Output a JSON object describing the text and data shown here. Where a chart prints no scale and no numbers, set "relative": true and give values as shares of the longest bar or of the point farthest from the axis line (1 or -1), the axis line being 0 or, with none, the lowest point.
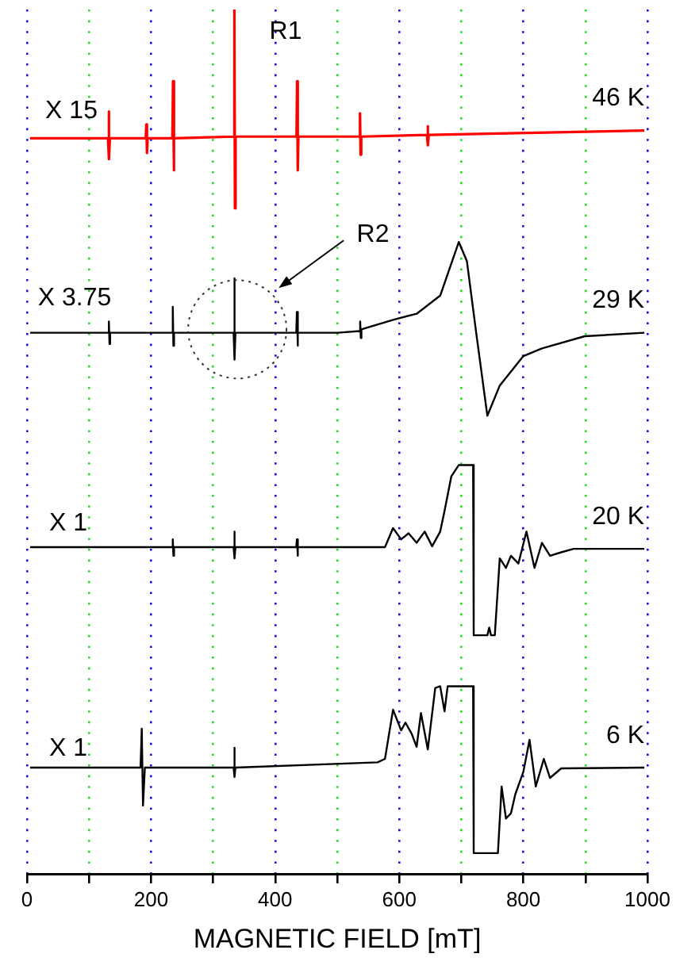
{
  "chart_data": {
    "type": "line",
    "relative": true,
    "xlabel": "MAGNETIC FIELD [mT]",
    "xlim": [
      0,
      1000
    ],
    "xticks": [
      0,
      {
        "value": 100,
        "label": null
      },
      200,
      {
        "value": 300,
        "label": null
      },
      400,
      {
        "value": 500,
        "label": null
      },
      600,
      {
        "value": 700,
        "label": null
      },
      800,
      {
        "value": 900,
        "label": null
      },
      1000
    ],
    "grid": "x",
    "legend": false,
    "marker": "none",
    "line_style": "solid",
    "series": [
      {
        "name": "46 K",
        "color": "#ff0000",
        "x": [
          5,
          130.6,
          131.6,
          132.6,
          133.6,
          191.4,
          192.4,
          193.4,
          194.4,
          234.4,
          235.4,
          236.4,
          237.4,
          333.2,
          334.2,
          335.2,
          336.2,
          434.4,
          435.4,
          436.4,
          437.4,
          535.7,
          536.7,
          537.7,
          538.7,
          644.6,
          645.6,
          646.6,
          647.6,
          995
        ],
        "values": [
          0.851,
          0.851,
          0.882,
          0.827,
          0.851,
          0.851,
          0.867,
          0.834,
          0.851,
          0.851,
          0.917,
          0.814,
          0.851,
          0.853,
          1.0,
          0.77,
          0.853,
          0.853,
          0.917,
          0.814,
          0.853,
          0.853,
          0.88,
          0.832,
          0.853,
          0.855,
          0.865,
          0.843,
          0.855,
          0.86
        ]
      },
      {
        "name": "29 K",
        "color": "#000000",
        "x": [
          5,
          131,
          132,
          133,
          134,
          234,
          235,
          236,
          237,
          333,
          334,
          335,
          336,
          434,
          435,
          436,
          437,
          501,
          536,
          537,
          538,
          539,
          590,
          628,
          666,
          696,
          709,
          724,
          742,
          762,
          800,
          830,
          899,
          995
        ],
        "values": [
          0.626,
          0.626,
          0.639,
          0.613,
          0.626,
          0.626,
          0.656,
          0.611,
          0.626,
          0.626,
          0.689,
          0.595,
          0.626,
          0.626,
          0.65,
          0.611,
          0.626,
          0.626,
          0.628,
          0.639,
          0.62,
          0.63,
          0.641,
          0.648,
          0.669,
          0.731,
          0.709,
          0.626,
          0.53,
          0.565,
          0.599,
          0.608,
          0.622,
          0.626
        ]
      },
      {
        "name": "20 K",
        "color": "#000000",
        "x": [
          5,
          234,
          235,
          236,
          237,
          333,
          334,
          335,
          336,
          434,
          435,
          436,
          437,
          565,
          577,
          590,
          603,
          615,
          628,
          641,
          653,
          666,
          673,
          684,
          696,
          719,
          720,
          742,
          745,
          748,
          754,
          762,
          772,
          780,
          792,
          805,
          818,
          830,
          843,
          861,
          881,
          995
        ],
        "values": [
          0.378,
          0.378,
          0.387,
          0.368,
          0.378,
          0.378,
          0.396,
          0.365,
          0.378,
          0.378,
          0.387,
          0.368,
          0.378,
          0.378,
          0.378,
          0.4,
          0.387,
          0.394,
          0.383,
          0.396,
          0.379,
          0.396,
          0.42,
          0.46,
          0.473,
          0.473,
          0.276,
          0.276,
          0.285,
          0.276,
          0.276,
          0.365,
          0.354,
          0.368,
          0.359,
          0.396,
          0.354,
          0.383,
          0.368,
          0.372,
          0.376,
          0.376
        ]
      },
      {
        "name": "6 K",
        "color": "#000000",
        "x": [
          5,
          183,
          185,
          187,
          190,
          333,
          334,
          335,
          336,
          565,
          577,
          590,
          603,
          610,
          620,
          628,
          635,
          646,
          658,
          666,
          673,
          678,
          719,
          720,
          759,
          765,
          772,
          780,
          787,
          800,
          810,
          820,
          833,
          843,
          861,
          995
        ],
        "values": [
          0.123,
          0.123,
          0.168,
          0.079,
          0.123,
          0.123,
          0.146,
          0.112,
          0.123,
          0.129,
          0.133,
          0.19,
          0.166,
          0.175,
          0.162,
          0.147,
          0.186,
          0.144,
          0.215,
          0.217,
          0.188,
          0.217,
          0.217,
          0.024,
          0.024,
          0.101,
          0.064,
          0.07,
          0.092,
          0.118,
          0.155,
          0.101,
          0.133,
          0.111,
          0.122,
          0.123
        ]
      }
    ],
    "annotations": [
      "X 15",
      "R1",
      "X 3.75",
      "R2",
      "X 1",
      "X 1"
    ]
  }
}
